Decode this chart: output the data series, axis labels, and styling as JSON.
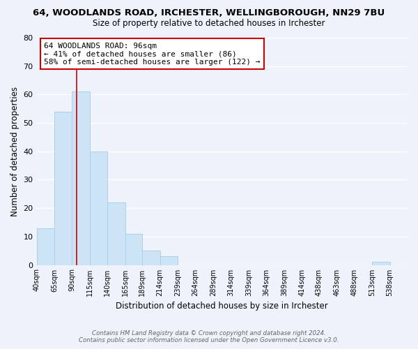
{
  "title": "64, WOODLANDS ROAD, IRCHESTER, WELLINGBOROUGH, NN29 7BU",
  "subtitle": "Size of property relative to detached houses in Irchester",
  "xlabel": "Distribution of detached houses by size in Irchester",
  "ylabel": "Number of detached properties",
  "bar_color": "#cce4f5",
  "bar_edge_color": "#a8ccdf",
  "bin_labels": [
    "40sqm",
    "65sqm",
    "90sqm",
    "115sqm",
    "140sqm",
    "165sqm",
    "189sqm",
    "214sqm",
    "239sqm",
    "264sqm",
    "289sqm",
    "314sqm",
    "339sqm",
    "364sqm",
    "389sqm",
    "414sqm",
    "438sqm",
    "463sqm",
    "488sqm",
    "513sqm",
    "538sqm"
  ],
  "bar_heights": [
    13,
    54,
    61,
    40,
    22,
    11,
    5,
    3,
    0,
    0,
    0,
    0,
    0,
    0,
    0,
    0,
    0,
    0,
    0,
    1,
    0
  ],
  "bin_edges": [
    40,
    65,
    90,
    115,
    140,
    165,
    189,
    214,
    239,
    264,
    289,
    314,
    339,
    364,
    389,
    414,
    438,
    463,
    488,
    513,
    538,
    563
  ],
  "ylim": [
    0,
    80
  ],
  "yticks": [
    0,
    10,
    20,
    30,
    40,
    50,
    60,
    70,
    80
  ],
  "property_line_x": 96,
  "property_line_color": "#cc0000",
  "annotation_line1": "64 WOODLANDS ROAD: 96sqm",
  "annotation_line2": "← 41% of detached houses are smaller (86)",
  "annotation_line3": "58% of semi-detached houses are larger (122) →",
  "annotation_box_color": "#ffffff",
  "annotation_box_edge": "#cc0000",
  "footer_line1": "Contains HM Land Registry data © Crown copyright and database right 2024.",
  "footer_line2": "Contains public sector information licensed under the Open Government Licence v3.0.",
  "background_color": "#eef2fa"
}
